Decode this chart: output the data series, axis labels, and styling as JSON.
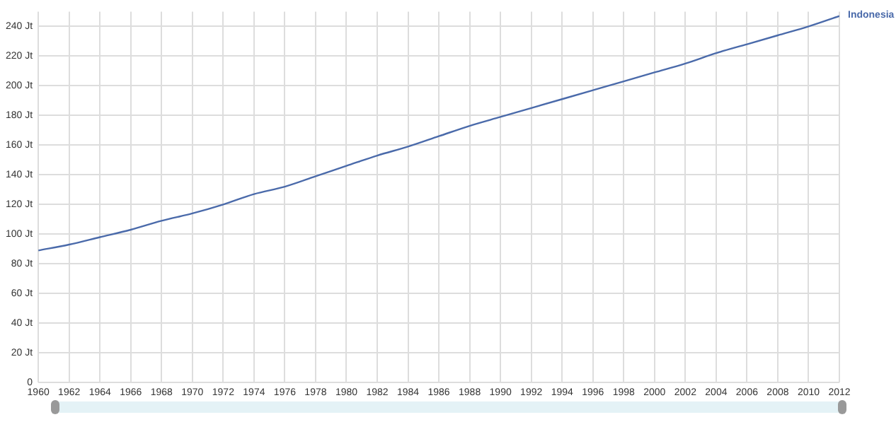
{
  "chart_data": {
    "type": "line",
    "x": [
      1960,
      1962,
      1964,
      1966,
      1968,
      1970,
      1972,
      1974,
      1976,
      1978,
      1980,
      1982,
      1984,
      1986,
      1988,
      1990,
      1992,
      1994,
      1996,
      1998,
      2000,
      2002,
      2004,
      2006,
      2008,
      2010,
      2012
    ],
    "series": [
      {
        "name": "Indonesia",
        "color": "#4a6aaa",
        "values": [
          89,
          93,
          98,
          103,
          109,
          114,
          120,
          127,
          132,
          139,
          146,
          153,
          159,
          166,
          173,
          179,
          185,
          191,
          197,
          203,
          209,
          215,
          222,
          228,
          234,
          240,
          247
        ]
      }
    ],
    "xlim": [
      1960,
      2012
    ],
    "xticks": [
      1960,
      1962,
      1964,
      1966,
      1968,
      1970,
      1972,
      1974,
      1976,
      1978,
      1980,
      1982,
      1984,
      1986,
      1988,
      1990,
      1992,
      1994,
      1996,
      1998,
      2000,
      2002,
      2004,
      2006,
      2008,
      2010,
      2012
    ],
    "ylim": [
      0,
      250
    ],
    "yticks": [
      0,
      {
        "value": 20,
        "label": "20 Jt"
      },
      {
        "value": 40,
        "label": "40 Jt"
      },
      {
        "value": 60,
        "label": "60 Jt"
      },
      {
        "value": 80,
        "label": "80 Jt"
      },
      {
        "value": 100,
        "label": "100 Jt"
      },
      {
        "value": 120,
        "label": "120 Jt"
      },
      {
        "value": 140,
        "label": "140 Jt"
      },
      {
        "value": 160,
        "label": "160 Jt"
      },
      {
        "value": 180,
        "label": "180 Jt"
      },
      {
        "value": 200,
        "label": "200 Jt"
      },
      {
        "value": 220,
        "label": "220 Jt"
      },
      {
        "value": 240,
        "label": "240 Jt"
      }
    ],
    "grid": true,
    "marker": "none",
    "line_style": "solid"
  }
}
